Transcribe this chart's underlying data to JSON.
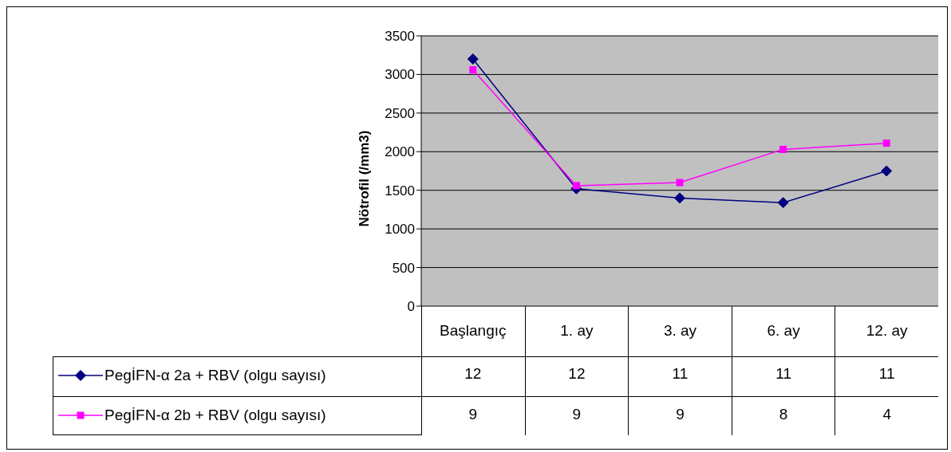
{
  "chart_data": {
    "type": "line",
    "ylabel": "Nötrofil (/mm3)",
    "categories": [
      "Başlangıç",
      "1. ay",
      "3. ay",
      "6. ay",
      "12. ay"
    ],
    "series": [
      {
        "name": "PegİFN-α 2a + RBV (olgu sayısı)",
        "color": "#000080",
        "marker": "diamond",
        "values": [
          3200,
          1520,
          1400,
          1340,
          1750
        ]
      },
      {
        "name": "PegİFN-α 2b + RBV (olgu sayısı)",
        "color": "#ff00ff",
        "marker": "square",
        "values": [
          3060,
          1560,
          1600,
          2030,
          2110
        ]
      }
    ],
    "annotations": [
      "12",
      "12",
      "11",
      "11",
      "11",
      "9",
      "9",
      "9",
      "8",
      "4"
    ],
    "ylim": [
      0,
      3500
    ],
    "yticks": [
      0,
      500,
      1000,
      1500,
      2000,
      2500,
      3000,
      3500
    ],
    "grid": "y",
    "legend": "bottom left",
    "line_style": "solid"
  }
}
